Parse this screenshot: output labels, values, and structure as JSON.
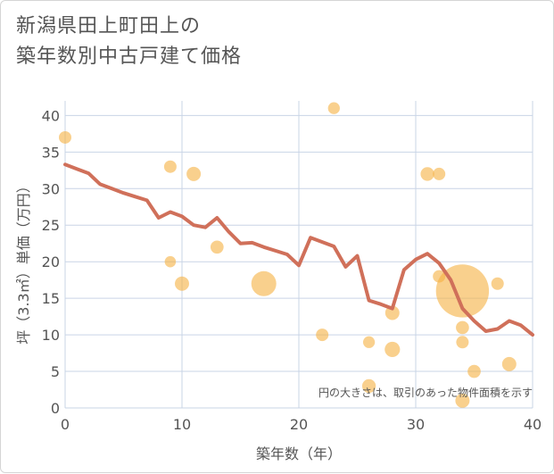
{
  "title": {
    "line1": "新潟県田上町田上の",
    "line2": "築年数別中古戸建て価格"
  },
  "chart_data": {
    "type": "scatter",
    "xlabel": "築年数（年）",
    "ylabel": "坪（3.3㎡）単価（万円）",
    "xlim": [
      0,
      40
    ],
    "ylim": [
      0,
      42
    ],
    "xticks": [
      0,
      10,
      20,
      30,
      40
    ],
    "yticks": [
      0,
      5,
      10,
      15,
      20,
      25,
      30,
      35,
      40
    ],
    "grid": true,
    "note": "円の大きさは、取引のあった物件面積を示す",
    "colors": {
      "bubble": "#f5b041",
      "line": "#d0705a",
      "grid": "#c9d4e6",
      "text": "#555555"
    },
    "bubbles": [
      {
        "x": 0,
        "y": 37,
        "size": 1
      },
      {
        "x": 9,
        "y": 33,
        "size": 1
      },
      {
        "x": 9,
        "y": 20,
        "size": 0.8
      },
      {
        "x": 10,
        "y": 17,
        "size": 1.3
      },
      {
        "x": 11,
        "y": 32,
        "size": 1.3
      },
      {
        "x": 13,
        "y": 22,
        "size": 1.1
      },
      {
        "x": 17,
        "y": 17,
        "size": 4
      },
      {
        "x": 22,
        "y": 10,
        "size": 1
      },
      {
        "x": 23,
        "y": 41,
        "size": 0.9
      },
      {
        "x": 26,
        "y": 9,
        "size": 0.9
      },
      {
        "x": 26,
        "y": 3,
        "size": 1.2
      },
      {
        "x": 28,
        "y": 13,
        "size": 1.3
      },
      {
        "x": 28,
        "y": 8,
        "size": 1.5
      },
      {
        "x": 31,
        "y": 32,
        "size": 1.2
      },
      {
        "x": 32,
        "y": 32,
        "size": 1
      },
      {
        "x": 32,
        "y": 18,
        "size": 1
      },
      {
        "x": 34,
        "y": 16,
        "size": 18
      },
      {
        "x": 34,
        "y": 11,
        "size": 1.1
      },
      {
        "x": 34,
        "y": 9,
        "size": 1
      },
      {
        "x": 34,
        "y": 1,
        "size": 1.3
      },
      {
        "x": 35,
        "y": 5,
        "size": 1.1
      },
      {
        "x": 37,
        "y": 17,
        "size": 1
      },
      {
        "x": 38,
        "y": 6,
        "size": 1.3
      }
    ],
    "trend": {
      "x": [
        0,
        1,
        2,
        3,
        4,
        5,
        6,
        7,
        8,
        9,
        10,
        11,
        12,
        13,
        14,
        15,
        16,
        17,
        18,
        19,
        20,
        21,
        22,
        23,
        24,
        25,
        26,
        27,
        28,
        29,
        30,
        31,
        32,
        33,
        34,
        35,
        36,
        37,
        38,
        39,
        40
      ],
      "y": [
        33.3,
        32.7,
        32.1,
        30.6,
        30.0,
        29.4,
        28.9,
        28.4,
        26.0,
        26.8,
        26.2,
        25.0,
        24.7,
        26.0,
        24.1,
        22.5,
        22.6,
        22.0,
        21.5,
        21.0,
        19.5,
        23.3,
        22.7,
        22.1,
        19.3,
        20.8,
        14.7,
        14.2,
        13.6,
        18.9,
        20.3,
        21.1,
        19.8,
        17.5,
        13.6,
        11.9,
        10.5,
        10.8,
        11.9,
        11.3,
        10.0
      ]
    }
  }
}
